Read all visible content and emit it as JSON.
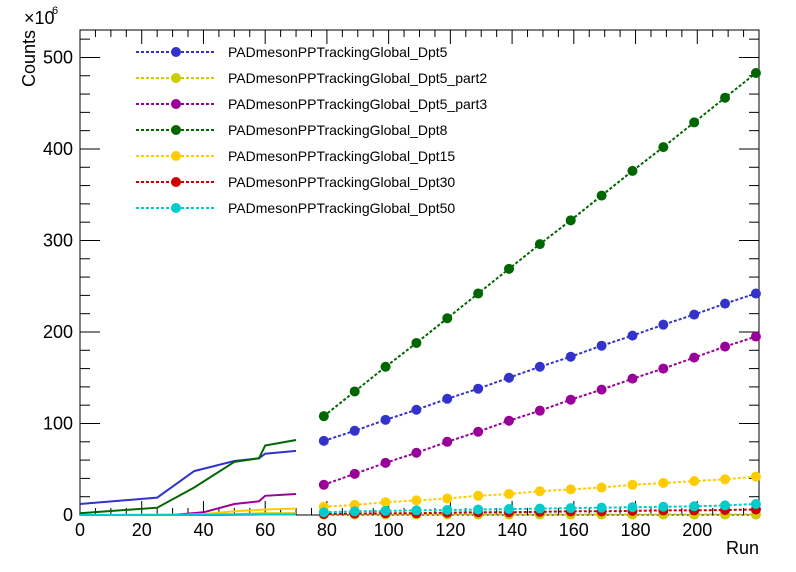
{
  "chart_data": {
    "type": "line",
    "title": "",
    "xlabel": "Run",
    "ylabel": "Counts",
    "y_multiplier_label": "×10",
    "y_multiplier_exp": "6",
    "xlim": [
      0,
      220
    ],
    "ylim": [
      0,
      530
    ],
    "x_ticks": [
      0,
      20,
      40,
      60,
      80,
      100,
      120,
      140,
      160,
      180,
      200
    ],
    "y_ticks": [
      0,
      100,
      200,
      300,
      400,
      500
    ],
    "legend_position": "top-left",
    "grid": false,
    "marker_x": [
      79,
      89,
      99,
      109,
      119,
      129,
      139,
      149,
      159,
      169,
      179,
      189,
      199,
      209,
      219
    ],
    "series": [
      {
        "name": "PADmesonPPTrackingGlobal_Dpt5",
        "color": "#3333cc",
        "line_x": [
          0,
          25,
          37,
          50,
          58,
          60,
          70
        ],
        "line_y": [
          12,
          19,
          48,
          59,
          62,
          67,
          70
        ],
        "marker_y": [
          81,
          92,
          104,
          115,
          127,
          138,
          150,
          162,
          173,
          185,
          196,
          208,
          219,
          231,
          242
        ]
      },
      {
        "name": "PADmesonPPTrackingGlobal_Dpt5_part2",
        "color": "#cccc00",
        "line_x": [
          0,
          30,
          50,
          60,
          70
        ],
        "line_y": [
          0,
          0.5,
          1,
          2,
          2
        ],
        "marker_y": [
          0.5,
          0.5,
          0.5,
          0.5,
          0.5,
          0.5,
          0.5,
          0.5,
          0.5,
          0.5,
          0.5,
          0.5,
          0.5,
          0.5,
          0.5
        ]
      },
      {
        "name": "PADmesonPPTrackingGlobal_Dpt5_part3",
        "color": "#990099",
        "line_x": [
          0,
          30,
          40,
          50,
          58,
          60,
          70
        ],
        "line_y": [
          0,
          0,
          3,
          12,
          15,
          21,
          23
        ],
        "marker_y": [
          33,
          45,
          57,
          68,
          80,
          91,
          103,
          114,
          126,
          137,
          149,
          160,
          172,
          184,
          195
        ]
      },
      {
        "name": "PADmesonPPTrackingGlobal_Dpt8",
        "color": "#006600",
        "line_x": [
          0,
          25,
          37,
          50,
          58,
          60,
          70
        ],
        "line_y": [
          2,
          8,
          30,
          58,
          62,
          76,
          82
        ],
        "marker_y": [
          108,
          135,
          162,
          188,
          215,
          242,
          269,
          296,
          322,
          349,
          376,
          402,
          429,
          456,
          483
        ]
      },
      {
        "name": "PADmesonPPTrackingGlobal_Dpt15",
        "color": "#ffcc00",
        "line_x": [
          0,
          30,
          40,
          50,
          60,
          70
        ],
        "line_y": [
          0,
          0,
          1,
          4,
          6,
          7
        ],
        "marker_y": [
          9,
          11,
          14,
          16,
          18,
          21,
          23,
          26,
          28,
          30,
          33,
          35,
          37,
          39,
          42
        ]
      },
      {
        "name": "PADmesonPPTrackingGlobal_Dpt30",
        "color": "#cc0000",
        "line_x": [
          0,
          40,
          60,
          70
        ],
        "line_y": [
          0,
          0,
          0.5,
          0.5
        ],
        "marker_y": [
          1,
          1.5,
          2,
          2,
          2.5,
          3,
          3,
          3.5,
          4,
          4,
          4.5,
          5,
          5,
          5.5,
          6
        ]
      },
      {
        "name": "PADmesonPPTrackingGlobal_Dpt50",
        "color": "#00cccc",
        "line_x": [
          0,
          30,
          60,
          70
        ],
        "line_y": [
          0,
          0,
          0.5,
          0.5
        ],
        "marker_y": [
          3,
          4,
          4.5,
          5,
          5.5,
          6,
          6.5,
          7,
          7.5,
          8,
          8.5,
          9,
          9.5,
          10.5,
          12
        ]
      }
    ]
  }
}
